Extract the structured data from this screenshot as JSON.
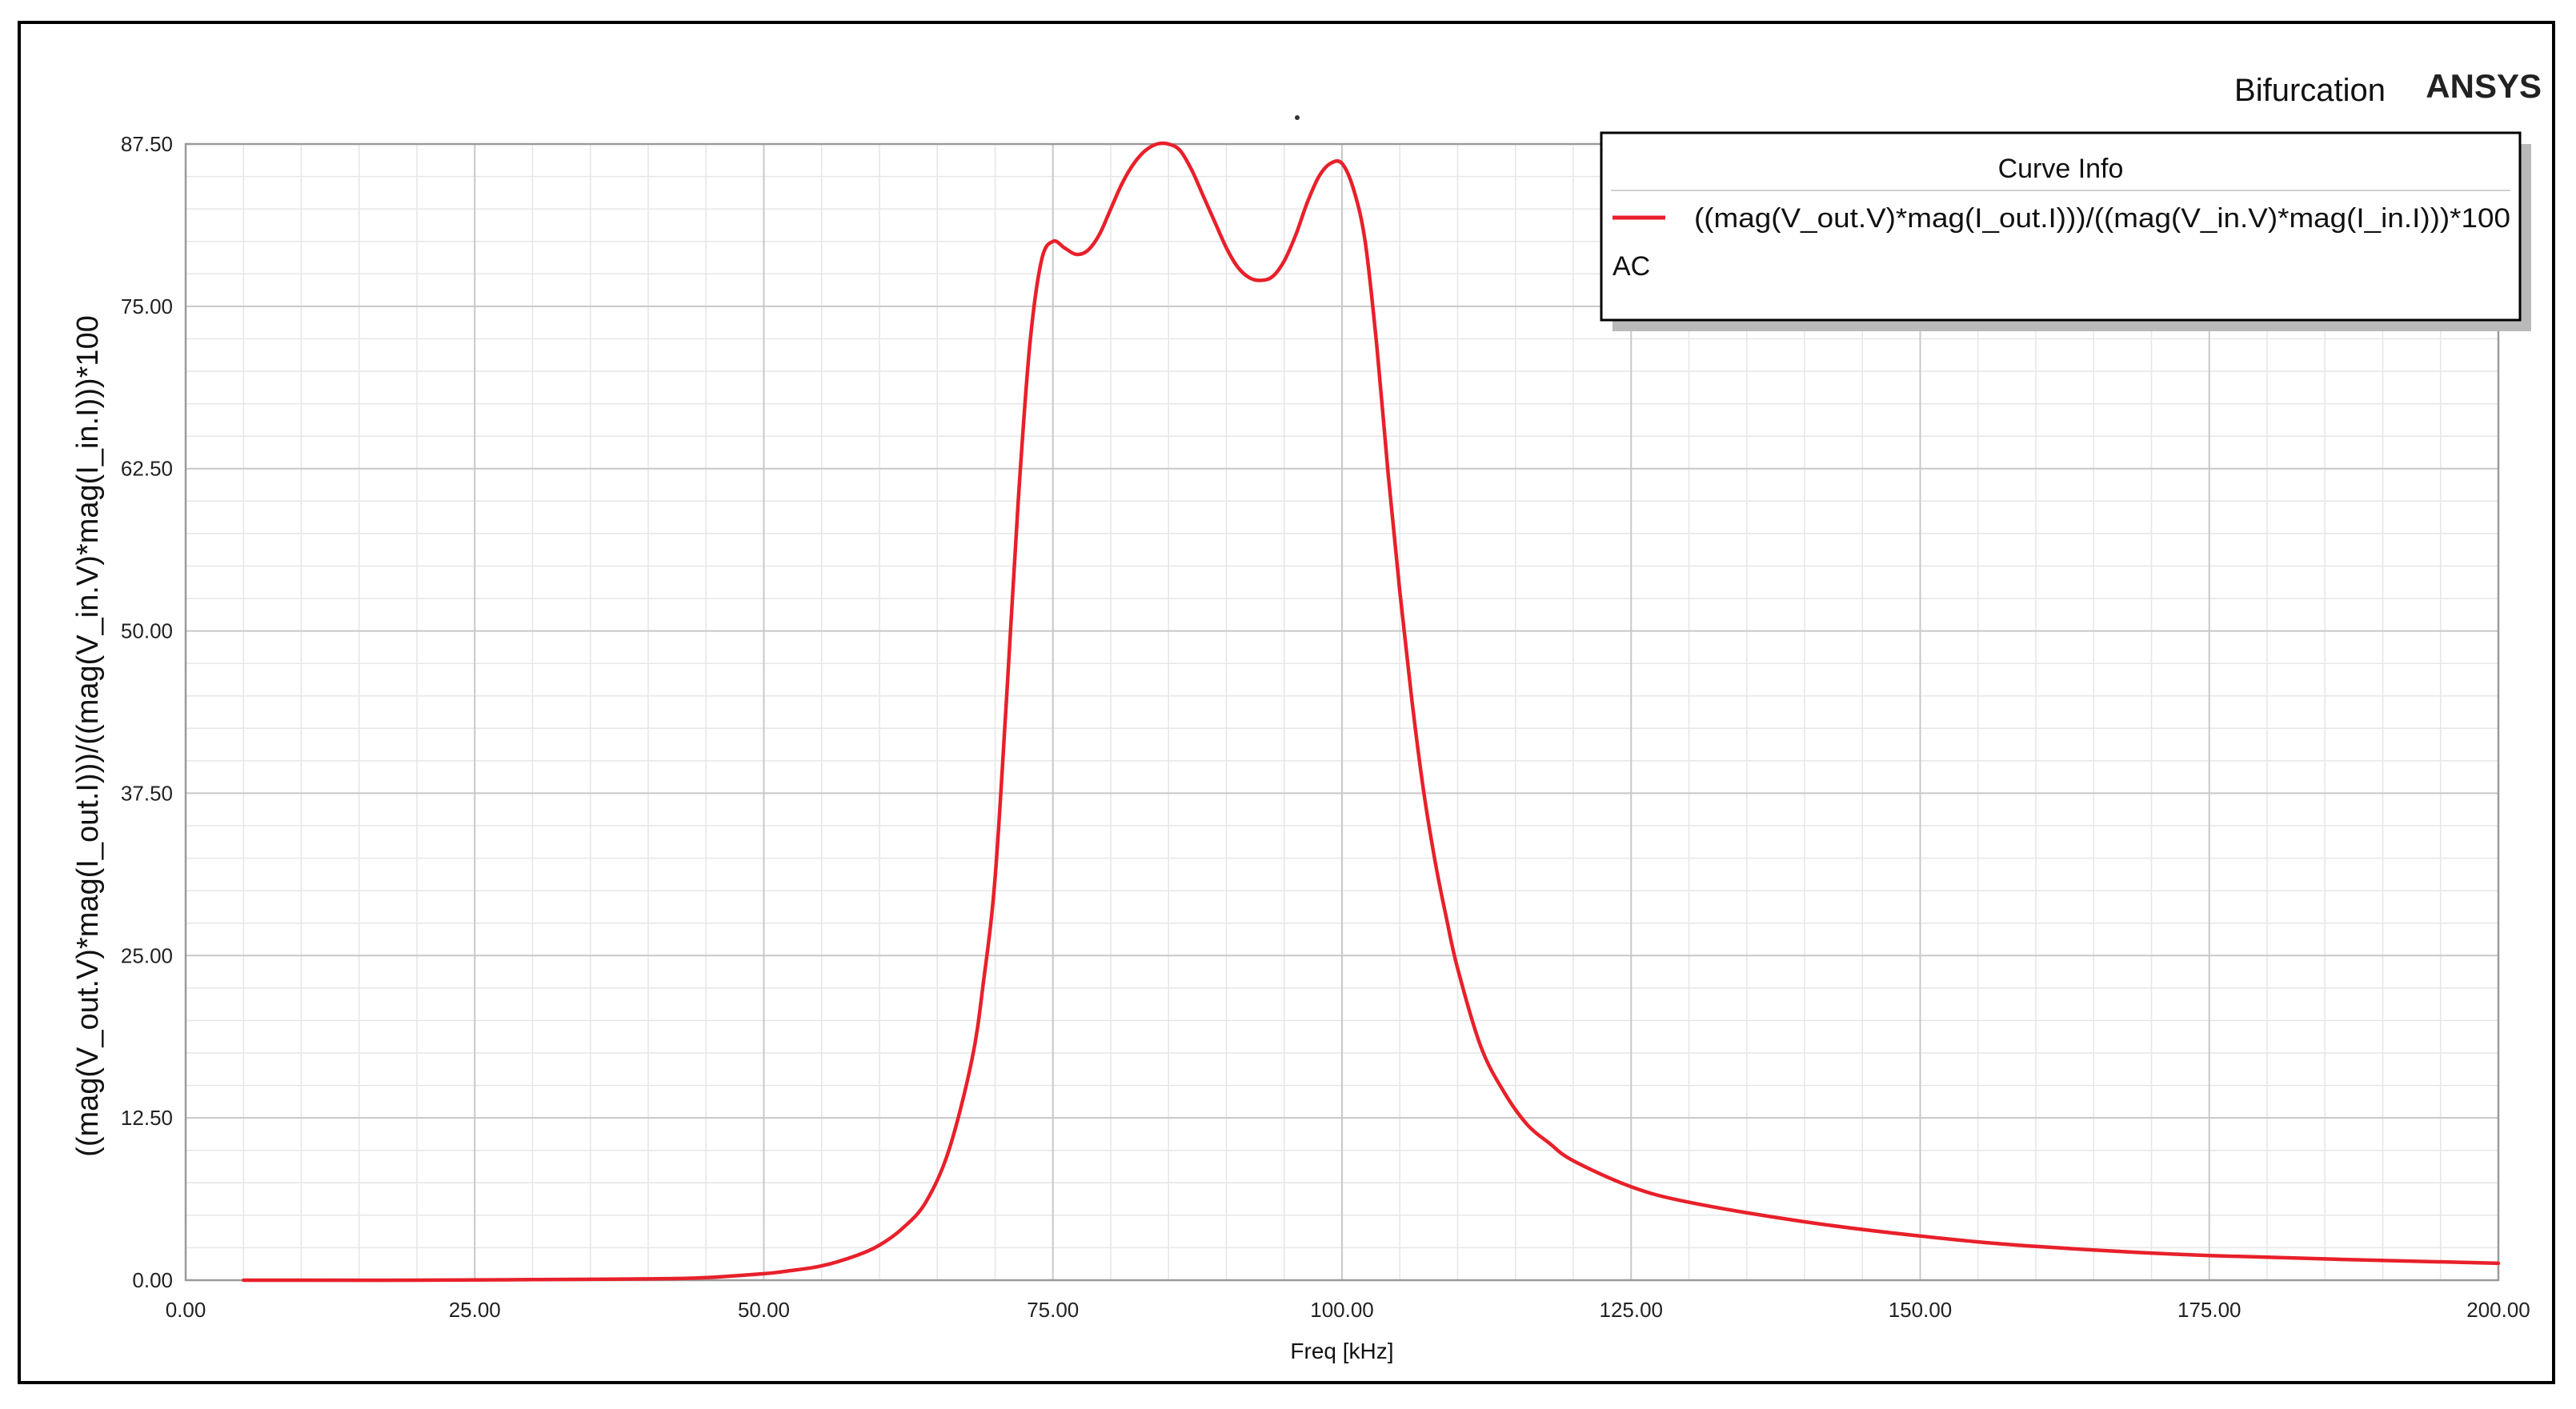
{
  "header": {
    "title": "Bifurcation",
    "brand": "ANSYS"
  },
  "legend": {
    "title": "Curve Info",
    "entry_label": "((mag(V_out.V)*mag(I_out.I)))/((mag(V_in.V)*mag(I_in.I)))*100",
    "entry_sub": "AC"
  },
  "colors": {
    "curve": "#e8202a",
    "grid_major": "#c8c8c8",
    "grid_minor": "#e6e6e6",
    "axis": "#9a9a9a"
  },
  "chart_data": {
    "type": "line",
    "title": "Bifurcation",
    "xlabel": "Freq [kHz]",
    "ylabel": "((mag(V_out.V)*mag(I_out.I)))/((mag(V_in.V)*mag(I_in.I)))*100",
    "xlim": [
      0,
      200
    ],
    "ylim": [
      0,
      87.5
    ],
    "x_ticks": [
      "0.00",
      "25.00",
      "50.00",
      "75.00",
      "100.00",
      "125.00",
      "150.00",
      "175.00",
      "200.00"
    ],
    "y_ticks": [
      "0.00",
      "12.50",
      "25.00",
      "37.50",
      "50.00",
      "62.50",
      "75.00",
      "87.50"
    ],
    "grid": true,
    "legend_position": "top-right",
    "series": [
      {
        "name": "((mag(V_out.V)*mag(I_out.I)))/((mag(V_in.V)*mag(I_in.I)))*100",
        "x": [
          5,
          20,
          40,
          45,
          50,
          52,
          55,
          58,
          60,
          62,
          64,
          66,
          68,
          69,
          70,
          71,
          72,
          73,
          74,
          75,
          76,
          77,
          78,
          79,
          80,
          81,
          82,
          83,
          84,
          85,
          86,
          87,
          88,
          89,
          90,
          91,
          92,
          93,
          94,
          95,
          96,
          97,
          98,
          99,
          100,
          101,
          102,
          103,
          104,
          105,
          106,
          107,
          108,
          109,
          110,
          112,
          114,
          116,
          118,
          120,
          125,
          130,
          140,
          150,
          160,
          175,
          200
        ],
        "y": [
          0,
          0,
          0.1,
          0.2,
          0.5,
          0.7,
          1.1,
          1.9,
          2.7,
          4,
          6,
          10,
          17,
          23,
          31,
          45,
          60,
          72,
          78.5,
          80,
          79.5,
          79,
          79.3,
          80.5,
          82.5,
          84.5,
          86,
          87,
          87.5,
          87.5,
          87,
          85.5,
          83.5,
          81.5,
          79.5,
          78,
          77.2,
          77,
          77.3,
          78.5,
          80.5,
          83,
          85,
          86,
          86,
          84,
          80,
          72,
          62,
          53,
          45,
          38,
          32.5,
          28,
          24,
          18,
          14.5,
          12,
          10.5,
          9.2,
          7.2,
          6,
          4.5,
          3.4,
          2.6,
          1.9,
          1.3
        ]
      }
    ]
  }
}
